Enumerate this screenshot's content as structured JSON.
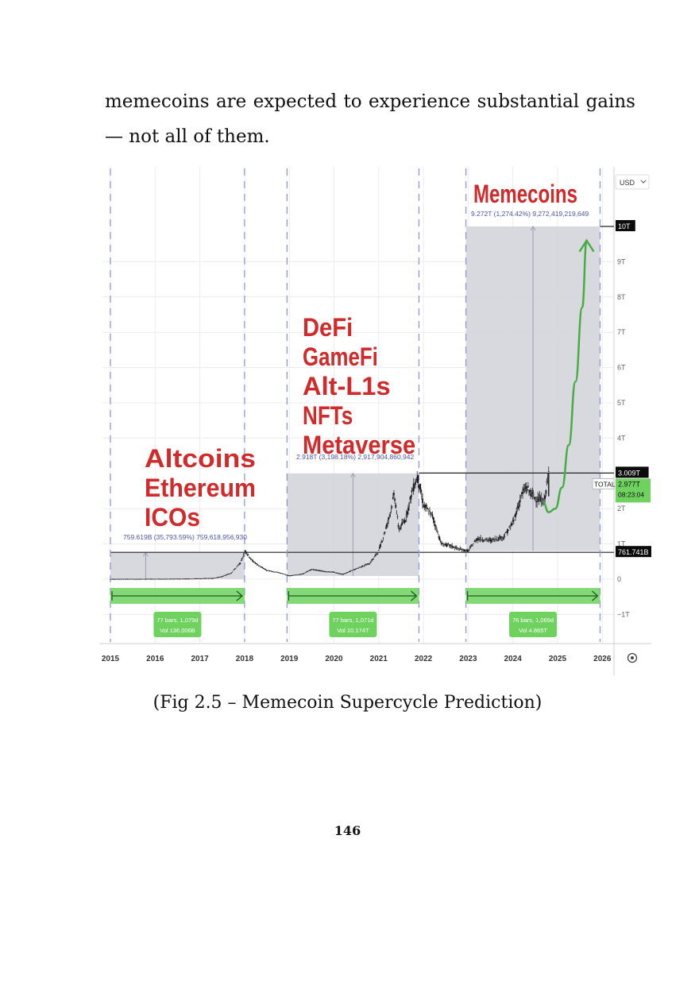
{
  "document": {
    "paragraph": "memecoins are expected to experience substantial gains — not all of them.",
    "caption": "(Fig 2.5 – Memecoin Supercycle Prediction)",
    "page_number": "146"
  },
  "chart_data": {
    "type": "line",
    "currency_selector": "USD",
    "x_years": [
      2015,
      2016,
      2017,
      2018,
      2019,
      2020,
      2021,
      2022,
      2023,
      2024,
      2025,
      2026
    ],
    "ylim": [
      -1,
      10.5
    ],
    "y_ticks": [
      {
        "value": 10,
        "label": "10T",
        "highlight": true
      },
      {
        "value": 9,
        "label": "9T"
      },
      {
        "value": 8,
        "label": "8T"
      },
      {
        "value": 7,
        "label": "7T"
      },
      {
        "value": 6,
        "label": "6T"
      },
      {
        "value": 5,
        "label": "5T"
      },
      {
        "value": 4,
        "label": "4T"
      },
      {
        "value": 3.009,
        "label": "3.009T",
        "highlight": true
      },
      {
        "value": 2,
        "label": "2T"
      },
      {
        "value": 1,
        "label": "1T"
      },
      {
        "value": 0.762,
        "label": "761.741B",
        "highlight": true
      },
      {
        "value": 0,
        "label": "0"
      },
      {
        "value": -1,
        "label": "−1T"
      }
    ],
    "total_badge": {
      "name": "TOTAL",
      "value": "2.977T",
      "time": "08:23:04"
    },
    "cycles": [
      {
        "labels": [
          "Altcoins",
          "Ethereum",
          "ICOs"
        ],
        "measure": "759.619B (35,793.59%) 759,618,956,930",
        "x_start": 2015.0,
        "x_end": 2018.0,
        "y_low": 0.0,
        "y_high": 0.76,
        "bars_info": [
          "77 bars, 1,079d",
          "Vol 136.006B"
        ]
      },
      {
        "labels": [
          "DeFi",
          "GameFi",
          "Alt-L1s",
          "NFTs",
          "Metaverse"
        ],
        "measure": "2.918T (3,198.18%) 2,917,904,860,942",
        "x_start": 2018.95,
        "x_end": 2021.9,
        "y_low": 0.09,
        "y_high": 3.0,
        "bars_info": [
          "77 bars, 1,071d",
          "Vol 10.174T"
        ]
      },
      {
        "labels": [
          "Memecoins"
        ],
        "measure": "9.272T (1,274.42%) 9,272,419,219,649",
        "x_start": 2022.95,
        "x_end": 2025.95,
        "y_low": 0.8,
        "y_high": 10.0,
        "bars_info": [
          "76 bars, 1,065d",
          "Vol 4.865T"
        ]
      }
    ],
    "price_series": [
      [
        2015.0,
        0.005
      ],
      [
        2015.5,
        0.005
      ],
      [
        2016.0,
        0.007
      ],
      [
        2016.5,
        0.01
      ],
      [
        2017.0,
        0.02
      ],
      [
        2017.3,
        0.03
      ],
      [
        2017.5,
        0.08
      ],
      [
        2017.7,
        0.18
      ],
      [
        2017.9,
        0.45
      ],
      [
        2018.02,
        0.8
      ],
      [
        2018.15,
        0.55
      ],
      [
        2018.3,
        0.4
      ],
      [
        2018.5,
        0.25
      ],
      [
        2018.8,
        0.18
      ],
      [
        2019.0,
        0.1
      ],
      [
        2019.3,
        0.15
      ],
      [
        2019.5,
        0.28
      ],
      [
        2019.8,
        0.22
      ],
      [
        2020.0,
        0.2
      ],
      [
        2020.2,
        0.14
      ],
      [
        2020.5,
        0.3
      ],
      [
        2020.8,
        0.45
      ],
      [
        2021.0,
        0.8
      ],
      [
        2021.2,
        1.6
      ],
      [
        2021.35,
        2.4
      ],
      [
        2021.45,
        1.4
      ],
      [
        2021.6,
        1.7
      ],
      [
        2021.75,
        2.5
      ],
      [
        2021.87,
        2.9
      ],
      [
        2022.0,
        2.1
      ],
      [
        2022.2,
        1.8
      ],
      [
        2022.4,
        1.0
      ],
      [
        2022.6,
        0.95
      ],
      [
        2022.8,
        0.85
      ],
      [
        2023.0,
        0.8
      ],
      [
        2023.2,
        1.15
      ],
      [
        2023.5,
        1.1
      ],
      [
        2023.8,
        1.2
      ],
      [
        2024.0,
        1.6
      ],
      [
        2024.2,
        2.4
      ],
      [
        2024.3,
        2.6
      ],
      [
        2024.5,
        2.3
      ],
      [
        2024.7,
        2.2
      ],
      [
        2024.8,
        3.0
      ]
    ],
    "projection_series": [
      [
        2024.67,
        2.2
      ],
      [
        2024.8,
        1.9
      ],
      [
        2024.95,
        2.0
      ],
      [
        2025.1,
        2.6
      ],
      [
        2025.25,
        3.8
      ],
      [
        2025.4,
        5.6
      ],
      [
        2025.55,
        7.7
      ],
      [
        2025.65,
        9.6
      ]
    ]
  },
  "colors": {
    "label_red": "#d12a2a",
    "measure_blue": "#4a56b0",
    "shade": "#d3d5dc",
    "green": "#6fd25f",
    "projection_green": "#47ad42",
    "candle": "#2a2a2a",
    "dashed_line": "#8f97d8"
  }
}
